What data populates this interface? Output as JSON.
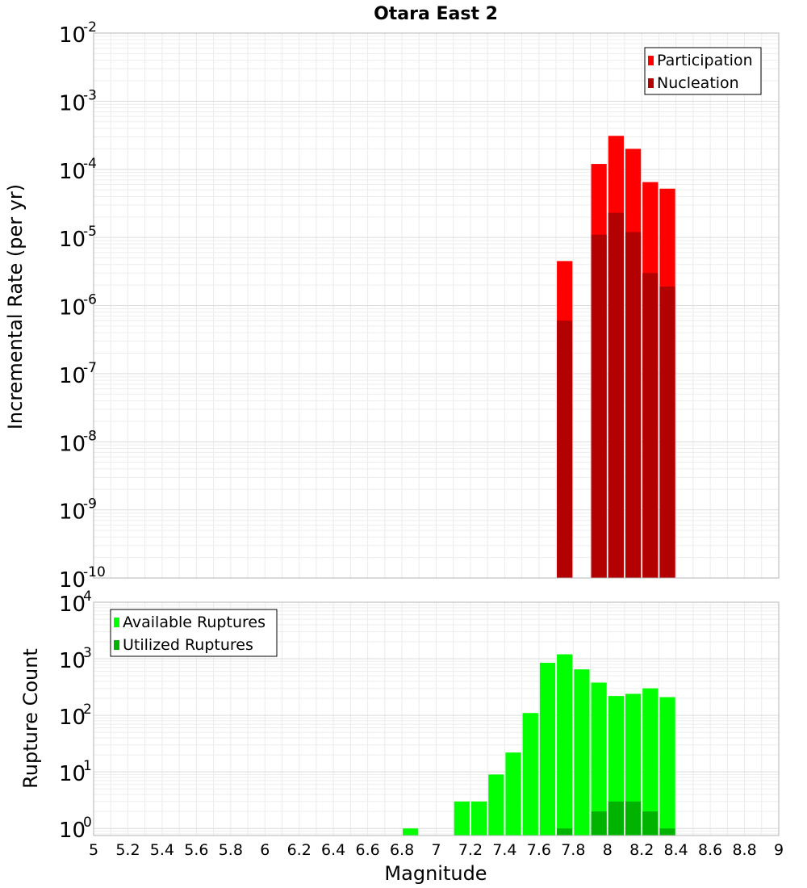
{
  "chart_data": [
    {
      "type": "bar",
      "title": "Otara East 2",
      "xlabel": "",
      "ylabel": "Incremental Rate (per yr)",
      "yscale": "log",
      "xlim": [
        5,
        9
      ],
      "ylim": [
        1e-10,
        0.01
      ],
      "y_ticks": [
        {
          "base": "10",
          "exp": "-10",
          "value": 1e-10
        },
        {
          "base": "10",
          "exp": "-9",
          "value": 1e-09
        },
        {
          "base": "10",
          "exp": "-8",
          "value": 1e-08
        },
        {
          "base": "10",
          "exp": "-7",
          "value": 1e-07
        },
        {
          "base": "10",
          "exp": "-6",
          "value": 1e-06
        },
        {
          "base": "10",
          "exp": "-5",
          "value": 1e-05
        },
        {
          "base": "10",
          "exp": "-4",
          "value": 0.0001
        },
        {
          "base": "10",
          "exp": "-3",
          "value": 0.001
        },
        {
          "base": "10",
          "exp": "-2",
          "value": 0.01
        }
      ],
      "legend_position": "top-right",
      "bin_width": 0.1,
      "series": [
        {
          "name": "Participation",
          "color": "#ff0000",
          "x": [
            7.75,
            7.95,
            8.05,
            8.15,
            8.25,
            8.35
          ],
          "values": [
            4.5e-06,
            0.00012,
            0.00031,
            0.0002,
            6.5e-05,
            5.2e-05
          ]
        },
        {
          "name": "Nucleation",
          "color": "#b30000",
          "x": [
            7.75,
            7.95,
            8.05,
            8.15,
            8.25,
            8.35
          ],
          "values": [
            6e-07,
            1.1e-05,
            2.3e-05,
            1.2e-05,
            3e-06,
            1.9e-06
          ]
        }
      ]
    },
    {
      "type": "bar",
      "title": "",
      "xlabel": "Magnitude",
      "ylabel": "Rupture Count",
      "yscale": "log",
      "xlim": [
        5,
        9
      ],
      "ylim": [
        0.75,
        10000
      ],
      "y_ticks": [
        {
          "base": "10",
          "exp": "0",
          "value": 1
        },
        {
          "base": "10",
          "exp": "1",
          "value": 10
        },
        {
          "base": "10",
          "exp": "2",
          "value": 100
        },
        {
          "base": "10",
          "exp": "3",
          "value": 1000
        },
        {
          "base": "10",
          "exp": "4",
          "value": 10000
        }
      ],
      "x_ticks": [
        "5",
        "5.2",
        "5.4",
        "5.6",
        "5.8",
        "6",
        "6.2",
        "6.4",
        "6.6",
        "6.8",
        "7",
        "7.2",
        "7.4",
        "7.6",
        "7.8",
        "8",
        "8.2",
        "8.4",
        "8.6",
        "8.8",
        "9"
      ],
      "legend_position": "top-left",
      "bin_width": 0.1,
      "series": [
        {
          "name": "Available Ruptures",
          "color": "#00ff00",
          "x": [
            6.85,
            7.15,
            7.25,
            7.35,
            7.45,
            7.55,
            7.65,
            7.75,
            7.85,
            7.95,
            8.05,
            8.15,
            8.25,
            8.35
          ],
          "values": [
            1,
            3,
            3,
            9,
            22,
            110,
            850,
            1200,
            650,
            380,
            220,
            240,
            300,
            210
          ]
        },
        {
          "name": "Utilized Ruptures",
          "color": "#00b300",
          "x": [
            7.75,
            7.95,
            8.05,
            8.15,
            8.25,
            8.35
          ],
          "values": [
            1,
            2,
            3,
            3,
            2,
            1
          ]
        }
      ]
    }
  ]
}
